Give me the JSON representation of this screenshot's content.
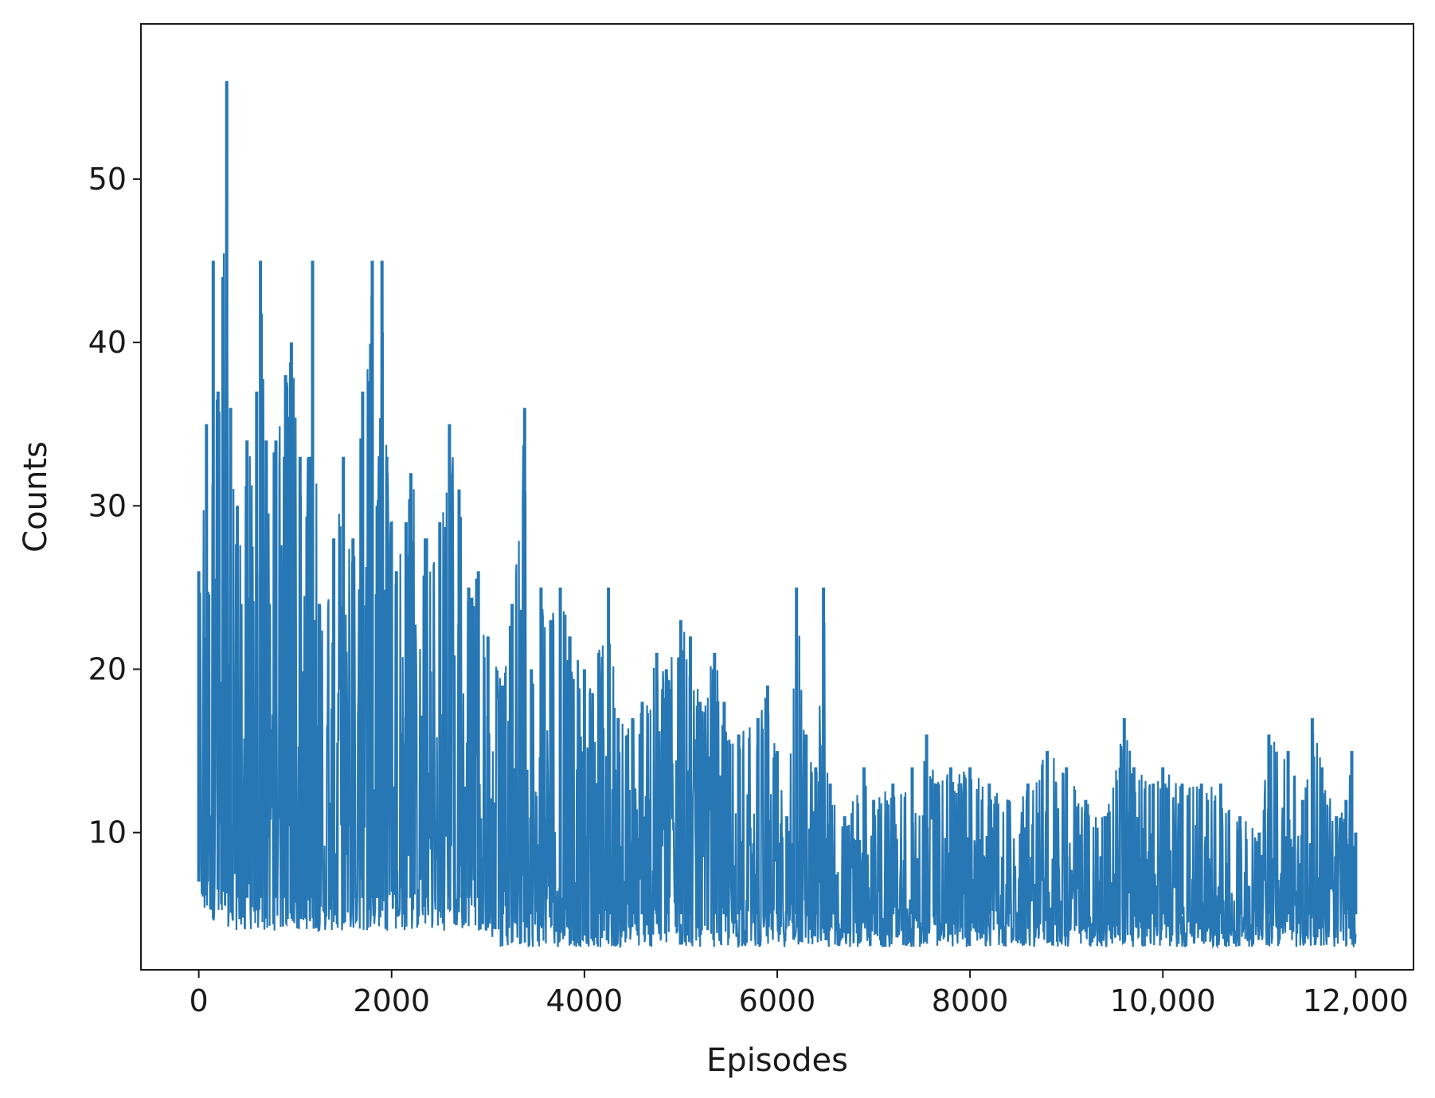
{
  "chart_data": {
    "type": "line",
    "xlabel": "Episodes",
    "ylabel": "Counts",
    "xlim": [
      -600,
      12600
    ],
    "ylim": [
      1.6,
      59.5
    ],
    "grid": false,
    "color": "#2677b4",
    "xticks": [
      {
        "value": 0,
        "label": "0"
      },
      {
        "value": 2000,
        "label": "2000"
      },
      {
        "value": 4000,
        "label": "4000"
      },
      {
        "value": 6000,
        "label": "6000"
      },
      {
        "value": 8000,
        "label": "8000"
      },
      {
        "value": 10000,
        "label": "10,000"
      },
      {
        "value": 12000,
        "label": "12,000"
      }
    ],
    "yticks": [
      {
        "value": 10,
        "label": "10"
      },
      {
        "value": 20,
        "label": "20"
      },
      {
        "value": 30,
        "label": "30"
      },
      {
        "value": 40,
        "label": "40"
      },
      {
        "value": 50,
        "label": "50"
      }
    ],
    "x_range": [
      0,
      12000
    ],
    "envelope": {
      "upper": [
        [
          0,
          26
        ],
        [
          80,
          35
        ],
        [
          150,
          45
        ],
        [
          200,
          37
        ],
        [
          250,
          44
        ],
        [
          290,
          56
        ],
        [
          330,
          36
        ],
        [
          400,
          30
        ],
        [
          500,
          34
        ],
        [
          600,
          37
        ],
        [
          640,
          45
        ],
        [
          700,
          34
        ],
        [
          800,
          34
        ],
        [
          900,
          38
        ],
        [
          960,
          40
        ],
        [
          1050,
          33
        ],
        [
          1150,
          33
        ],
        [
          1180,
          45
        ],
        [
          1250,
          24
        ],
        [
          1400,
          28
        ],
        [
          1500,
          33
        ],
        [
          1600,
          28
        ],
        [
          1700,
          37
        ],
        [
          1800,
          45
        ],
        [
          1850,
          30
        ],
        [
          1900,
          45
        ],
        [
          1950,
          33
        ],
        [
          2050,
          26
        ],
        [
          2150,
          29
        ],
        [
          2200,
          32
        ],
        [
          2350,
          28
        ],
        [
          2500,
          29
        ],
        [
          2600,
          35
        ],
        [
          2700,
          31
        ],
        [
          2800,
          25
        ],
        [
          2900,
          26
        ],
        [
          3000,
          22
        ],
        [
          3150,
          19
        ],
        [
          3250,
          24
        ],
        [
          3380,
          36
        ],
        [
          3450,
          20
        ],
        [
          3550,
          25
        ],
        [
          3650,
          23
        ],
        [
          3750,
          25
        ],
        [
          3850,
          22
        ],
        [
          4000,
          20
        ],
        [
          4150,
          21
        ],
        [
          4250,
          25
        ],
        [
          4350,
          17
        ],
        [
          4500,
          17
        ],
        [
          4600,
          18
        ],
        [
          4750,
          21
        ],
        [
          4850,
          20
        ],
        [
          5000,
          23
        ],
        [
          5100,
          22
        ],
        [
          5200,
          18
        ],
        [
          5350,
          21
        ],
        [
          5450,
          18
        ],
        [
          5600,
          16
        ],
        [
          5800,
          17
        ],
        [
          5900,
          19
        ],
        [
          6000,
          15
        ],
        [
          6100,
          11
        ],
        [
          6200,
          25
        ],
        [
          6300,
          16
        ],
        [
          6400,
          14
        ],
        [
          6480,
          25
        ],
        [
          6550,
          13
        ],
        [
          6700,
          11
        ],
        [
          6900,
          14
        ],
        [
          7000,
          12
        ],
        [
          7200,
          13
        ],
        [
          7400,
          14
        ],
        [
          7550,
          16
        ],
        [
          7650,
          13
        ],
        [
          7800,
          14
        ],
        [
          8000,
          14
        ],
        [
          8200,
          13
        ],
        [
          8400,
          12
        ],
        [
          8600,
          13
        ],
        [
          8800,
          15
        ],
        [
          9000,
          14
        ],
        [
          9200,
          12
        ],
        [
          9400,
          11
        ],
        [
          9600,
          17
        ],
        [
          9700,
          14
        ],
        [
          9900,
          13
        ],
        [
          10000,
          14
        ],
        [
          10200,
          13
        ],
        [
          10400,
          13
        ],
        [
          10600,
          13
        ],
        [
          10800,
          11
        ],
        [
          11000,
          10
        ],
        [
          11100,
          16
        ],
        [
          11300,
          15
        ],
        [
          11450,
          12
        ],
        [
          11550,
          17
        ],
        [
          11650,
          14
        ],
        [
          11800,
          11
        ],
        [
          11900,
          12
        ],
        [
          11960,
          15
        ],
        [
          12000,
          10
        ]
      ],
      "lower": [
        [
          0,
          5
        ],
        [
          400,
          4
        ],
        [
          1000,
          4
        ],
        [
          2000,
          4
        ],
        [
          3000,
          4
        ],
        [
          3100,
          3
        ],
        [
          4000,
          3
        ],
        [
          6000,
          3
        ],
        [
          8000,
          3
        ],
        [
          10000,
          3
        ],
        [
          12000,
          3
        ]
      ]
    }
  }
}
